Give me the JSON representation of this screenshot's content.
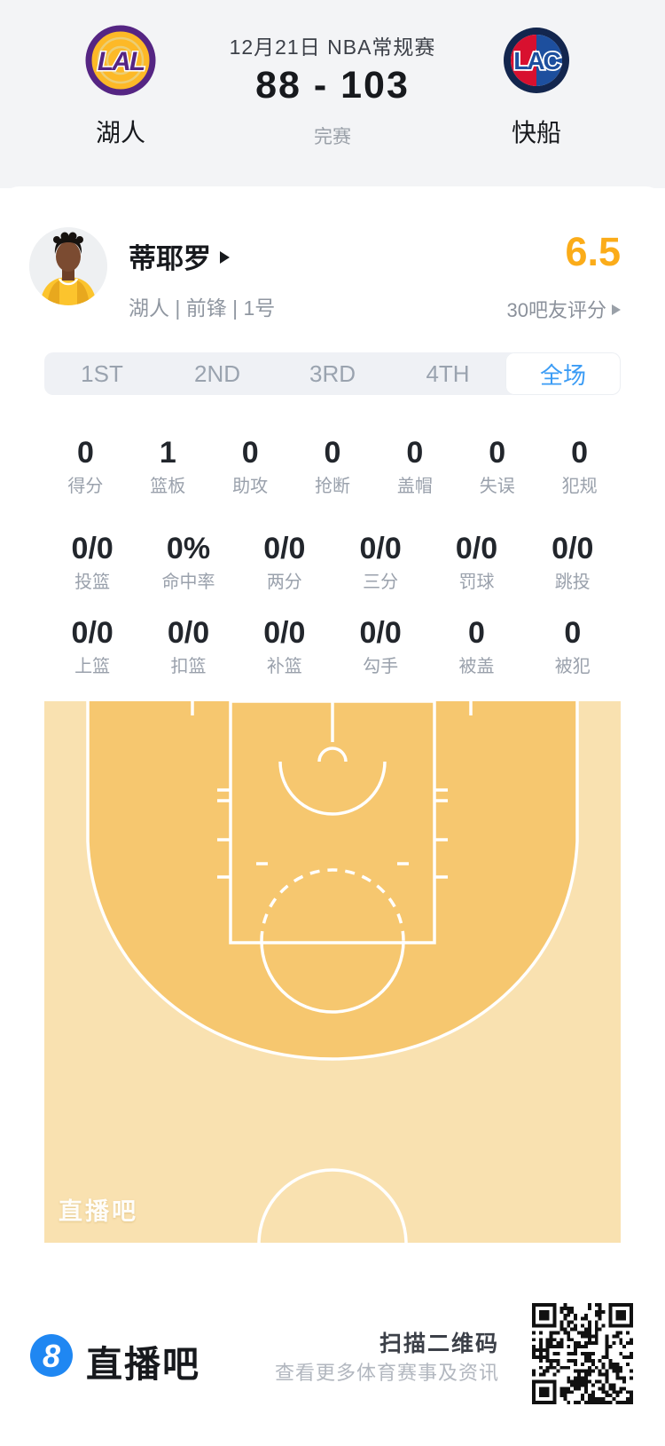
{
  "header": {
    "date": "12月21日 NBA常规赛",
    "score": "88 - 103",
    "status": "完赛",
    "home": {
      "abbr": "LAL",
      "name": "湖人"
    },
    "away": {
      "abbr": "LAC",
      "name": "快船"
    }
  },
  "player": {
    "name": "蒂耶罗",
    "meta": "湖人 | 前锋 | 1号",
    "rating": "6.5",
    "rating_caption": "30吧友评分"
  },
  "tabs": [
    {
      "label": "1ST",
      "active": false
    },
    {
      "label": "2ND",
      "active": false
    },
    {
      "label": "3RD",
      "active": false
    },
    {
      "label": "4TH",
      "active": false
    },
    {
      "label": "全场",
      "active": true
    }
  ],
  "stats": {
    "row1": [
      {
        "value": "0",
        "label": "得分"
      },
      {
        "value": "1",
        "label": "篮板"
      },
      {
        "value": "0",
        "label": "助攻"
      },
      {
        "value": "0",
        "label": "抢断"
      },
      {
        "value": "0",
        "label": "盖帽"
      },
      {
        "value": "0",
        "label": "失误"
      },
      {
        "value": "0",
        "label": "犯规"
      }
    ],
    "row2": [
      {
        "value": "0/0",
        "label": "投篮"
      },
      {
        "value": "0%",
        "label": "命中率"
      },
      {
        "value": "0/0",
        "label": "两分"
      },
      {
        "value": "0/0",
        "label": "三分"
      },
      {
        "value": "0/0",
        "label": "罚球"
      },
      {
        "value": "0/0",
        "label": "跳投"
      }
    ],
    "row3": [
      {
        "value": "0/0",
        "label": "上篮"
      },
      {
        "value": "0/0",
        "label": "扣篮"
      },
      {
        "value": "0/0",
        "label": "补篮"
      },
      {
        "value": "0/0",
        "label": "勾手"
      },
      {
        "value": "0",
        "label": "被盖"
      },
      {
        "value": "0",
        "label": "被犯"
      }
    ]
  },
  "court": {
    "watermark": "直播吧"
  },
  "footer": {
    "logo_glyph": "8",
    "brand": "直播吧",
    "scan_title": "扫描二维码",
    "scan_subtitle": "查看更多体育赛事及资讯"
  },
  "colors": {
    "header_bg": "#f3f4f6",
    "accent_blue": "#3b9cf5",
    "rating_amber": "#fbac19",
    "court_inner": "#f6c76f",
    "court_outer": "#f9e1b0",
    "lakers_purple": "#552583",
    "lakers_gold": "#fdb927",
    "clippers_navy": "#13264e",
    "clippers_red": "#d8102f",
    "clippers_blue": "#1d4f9e",
    "brand_blue": "#1f87f2"
  }
}
